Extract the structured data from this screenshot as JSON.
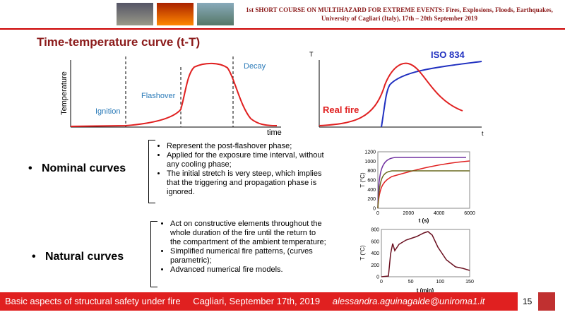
{
  "header": {
    "line1": "1st SHORT COURSE ON MULTIHAZARD FOR EXTREME EVENTS: Fires, Explosions, Floods, Earthquakes,",
    "line2": "University of Cagliari (Italy), 17th – 20th September 2019"
  },
  "title": "Time-temperature curve (t-T)",
  "diagram1": {
    "y_label": "Temperature",
    "x_label": "time",
    "labels": [
      "Ignition",
      "Flashover",
      "Decay"
    ]
  },
  "diagram2": {
    "y_label": "T",
    "x_label": "t",
    "labels": [
      "ISO 834",
      "Real fire"
    ]
  },
  "sections": [
    {
      "heading": "Nominal curves",
      "bullets": [
        "Represent the post-flashover phase;",
        "Applied for the exposure time interval, without any cooling phase;",
        "The initial stretch is very steep, which implies that the triggering and propagation phase is ignored."
      ]
    },
    {
      "heading": "Natural curves",
      "bullets": [
        "Act on constructive elements throughout the whole duration of the fire until the return to the compartment of the ambient temperature;",
        "Simplified numerical fire patterns, (curves parametric);",
        "Advanced numerical fire models."
      ]
    }
  ],
  "plot1": {
    "y_label": "T (°C)",
    "x_label": "t (s)",
    "yticks": [
      "0",
      "200",
      "400",
      "600",
      "800",
      "1000",
      "1200"
    ],
    "xticks": [
      "0",
      "2000",
      "4000",
      "6000"
    ]
  },
  "plot2": {
    "y_label": "T (°C)",
    "x_label": "t (min)",
    "yticks": [
      "0",
      "200",
      "400",
      "600",
      "800"
    ],
    "xticks": [
      "0",
      "50",
      "100",
      "150"
    ]
  },
  "footer": {
    "course": "Basic aspects of structural safety under fire",
    "place": "Cagliari, September 17th, 2019",
    "email": "alessandra.aguinagalde@uniroma1.it",
    "page": "15"
  }
}
